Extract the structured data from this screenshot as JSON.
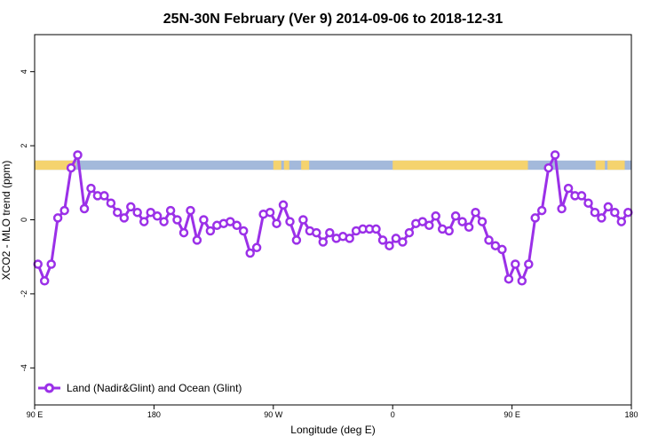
{
  "chart_data": {
    "type": "line",
    "title": "25N-30N February (Ver 9)   2014-09-06 to 2018-12-31",
    "xlabel": "Longitude (deg E)",
    "ylabel": "XCO2 - MLO trend (ppm)",
    "xlim": [
      90,
      540
    ],
    "ylim": [
      -5,
      5
    ],
    "x_ticks": [
      {
        "value": 90,
        "label": "90 E"
      },
      {
        "value": 180,
        "label": "180"
      },
      {
        "value": 270,
        "label": "90 W"
      },
      {
        "value": 360,
        "label": "0"
      },
      {
        "value": 450,
        "label": "90 E"
      },
      {
        "value": 540,
        "label": "180"
      }
    ],
    "y_ticks": [
      {
        "value": -4,
        "label": "-4"
      },
      {
        "value": -2,
        "label": "-2"
      },
      {
        "value": 0,
        "label": "0"
      },
      {
        "value": 2,
        "label": "2"
      },
      {
        "value": 4,
        "label": "4"
      }
    ],
    "colors": {
      "series": "#9b30e8",
      "land": "#f5d36e",
      "ocean": "#a3b9db"
    },
    "land_mask": {
      "y_range": [
        1.35,
        1.6
      ],
      "land_segments": [
        [
          90,
          121
        ],
        [
          270,
          276
        ],
        [
          278,
          282
        ],
        [
          291,
          297
        ],
        [
          360,
          462
        ],
        [
          513,
          520
        ],
        [
          522,
          535
        ]
      ]
    },
    "legend": {
      "position": "bottom-left"
    },
    "series": [
      {
        "name": "Land (Nadir&Glint) and Ocean (Glint)",
        "x": [
          92.5,
          97.5,
          102.5,
          107.5,
          112.5,
          117.5,
          122.5,
          127.5,
          132.5,
          137.5,
          142.5,
          147.5,
          152.5,
          157.5,
          162.5,
          167.5,
          172.5,
          177.5,
          182.5,
          187.5,
          192.5,
          197.5,
          202.5,
          207.5,
          212.5,
          217.5,
          222.5,
          227.5,
          232.5,
          237.5,
          242.5,
          247.5,
          252.5,
          257.5,
          262.5,
          267.5,
          272.5,
          277.5,
          282.5,
          287.5,
          292.5,
          297.5,
          302.5,
          307.5,
          312.5,
          317.5,
          322.5,
          327.5,
          332.5,
          337.5,
          342.5,
          347.5,
          352.5,
          357.5,
          362.5,
          367.5,
          372.5,
          377.5,
          382.5,
          387.5,
          392.5,
          397.5,
          402.5,
          407.5,
          412.5,
          417.5,
          422.5,
          427.5,
          432.5,
          437.5,
          442.5,
          447.5,
          452.5,
          457.5,
          462.5,
          467.5,
          472.5,
          477.5,
          482.5,
          487.5,
          492.5,
          497.5,
          502.5,
          507.5,
          512.5,
          517.5,
          522.5,
          527.5,
          532.5,
          537.5
        ],
        "values": [
          -1.2,
          -1.65,
          -1.2,
          0.05,
          0.25,
          1.4,
          1.75,
          0.3,
          0.85,
          0.65,
          0.65,
          0.45,
          0.2,
          0.05,
          0.35,
          0.2,
          -0.05,
          0.2,
          0.1,
          -0.05,
          0.25,
          0.0,
          -0.35,
          0.25,
          -0.55,
          0.0,
          -0.3,
          -0.15,
          -0.1,
          -0.05,
          -0.15,
          -0.3,
          -0.9,
          -0.75,
          0.15,
          0.2,
          -0.1,
          0.4,
          -0.05,
          -0.55,
          0.0,
          -0.3,
          -0.35,
          -0.6,
          -0.35,
          -0.5,
          -0.45,
          -0.5,
          -0.3,
          -0.25,
          -0.25,
          -0.25,
          -0.55,
          -0.7,
          -0.5,
          -0.6,
          -0.35,
          -0.1,
          -0.05,
          -0.15,
          0.1,
          -0.25,
          -0.3,
          0.1,
          -0.05,
          -0.2,
          0.2,
          -0.05,
          -0.55,
          -0.7,
          -0.8,
          -1.6,
          -1.2,
          -1.65,
          -1.2,
          0.05,
          0.25,
          1.4,
          1.75,
          0.3,
          0.85,
          0.65,
          0.65,
          0.45,
          0.2,
          0.05,
          0.35,
          0.2,
          -0.05,
          0.2
        ]
      }
    ]
  }
}
